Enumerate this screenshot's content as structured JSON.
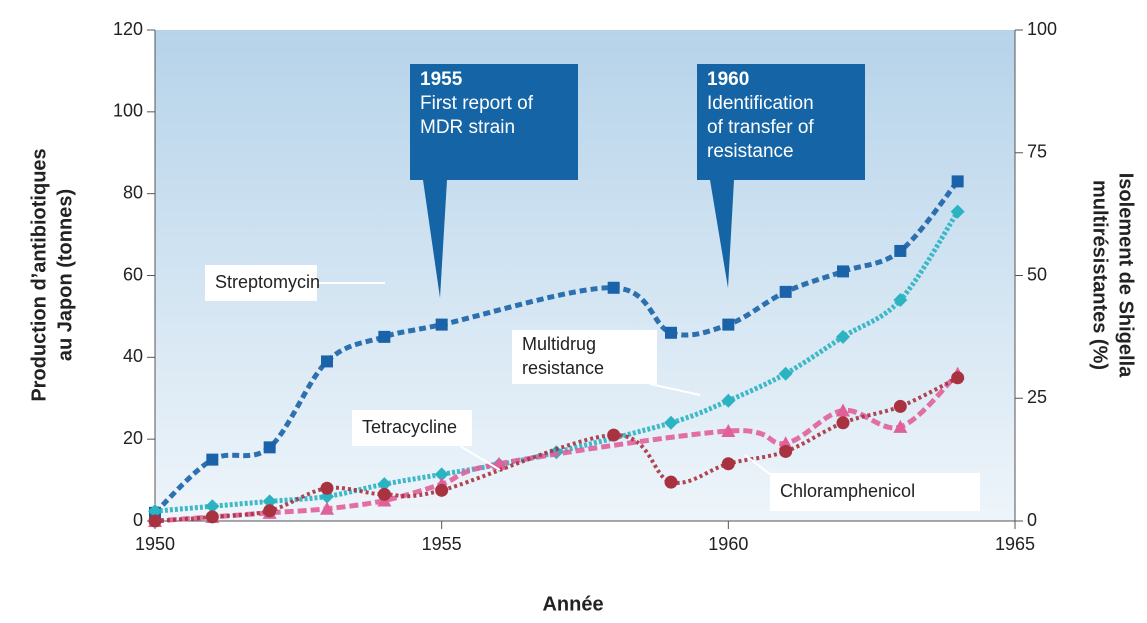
{
  "chart_data": {
    "type": "scatter",
    "x_label": "Année",
    "y_label": [
      "Production d’antibiotiques",
      "au Japon (tonnes)"
    ],
    "y2_label": [
      "Isolement de Shigella",
      "multirésistantes (%)"
    ],
    "xlim": [
      1950,
      1965
    ],
    "xticks": [
      1950,
      1955,
      1960,
      1965
    ],
    "ylim": [
      0,
      120
    ],
    "yticks": [
      0,
      20,
      40,
      60,
      80,
      100,
      120
    ],
    "y2lim": [
      0,
      100
    ],
    "y2ticks": [
      0,
      25,
      50,
      75,
      100
    ],
    "series": [
      {
        "name": "Streptomycin",
        "color": "#1a63a8",
        "marker": "square",
        "x": [
          1950,
          1951,
          1952,
          1953,
          1954,
          1955,
          1958,
          1959,
          1960,
          1961,
          1962,
          1963,
          1964
        ],
        "values": [
          2,
          15,
          18,
          39,
          45,
          48,
          57,
          46,
          48,
          56,
          61,
          66,
          83
        ]
      },
      {
        "name": "Multidrug resistance",
        "color": "#2bb3c2",
        "marker": "diamond",
        "axis": "y2",
        "x": [
          1950,
          1951,
          1952,
          1953,
          1954,
          1955,
          1956,
          1957,
          1959,
          1960,
          1961,
          1962,
          1963,
          1964
        ],
        "values": [
          2,
          3,
          4,
          5,
          7.5,
          9.5,
          11.5,
          14,
          20,
          24.5,
          30,
          37.5,
          45,
          63
        ]
      },
      {
        "name": "Tetracycline",
        "color": "#e0609a",
        "marker": "triangle",
        "x": [
          1950,
          1951,
          1952,
          1953,
          1954,
          1955,
          1956,
          1960,
          1961,
          1962,
          1963,
          1964
        ],
        "values": [
          0,
          1,
          2,
          3,
          5,
          9,
          14,
          22,
          19,
          27,
          23,
          36
        ]
      },
      {
        "name": "Chloramphenicol",
        "color": "#a83240",
        "marker": "circle",
        "x": [
          1950,
          1951,
          1952,
          1953,
          1954,
          1955,
          1958,
          1959,
          1960,
          1961,
          1962,
          1963,
          1964
        ],
        "values": [
          0,
          1,
          2.5,
          8,
          6.5,
          7.5,
          21,
          9.5,
          14,
          17,
          24,
          28,
          35
        ]
      }
    ],
    "annotations": [
      {
        "year": "1955",
        "lines": [
          "First report of",
          "MDR strain"
        ]
      },
      {
        "year": "1960",
        "lines": [
          "Identification",
          "of transfer of",
          "resistance"
        ]
      }
    ]
  }
}
